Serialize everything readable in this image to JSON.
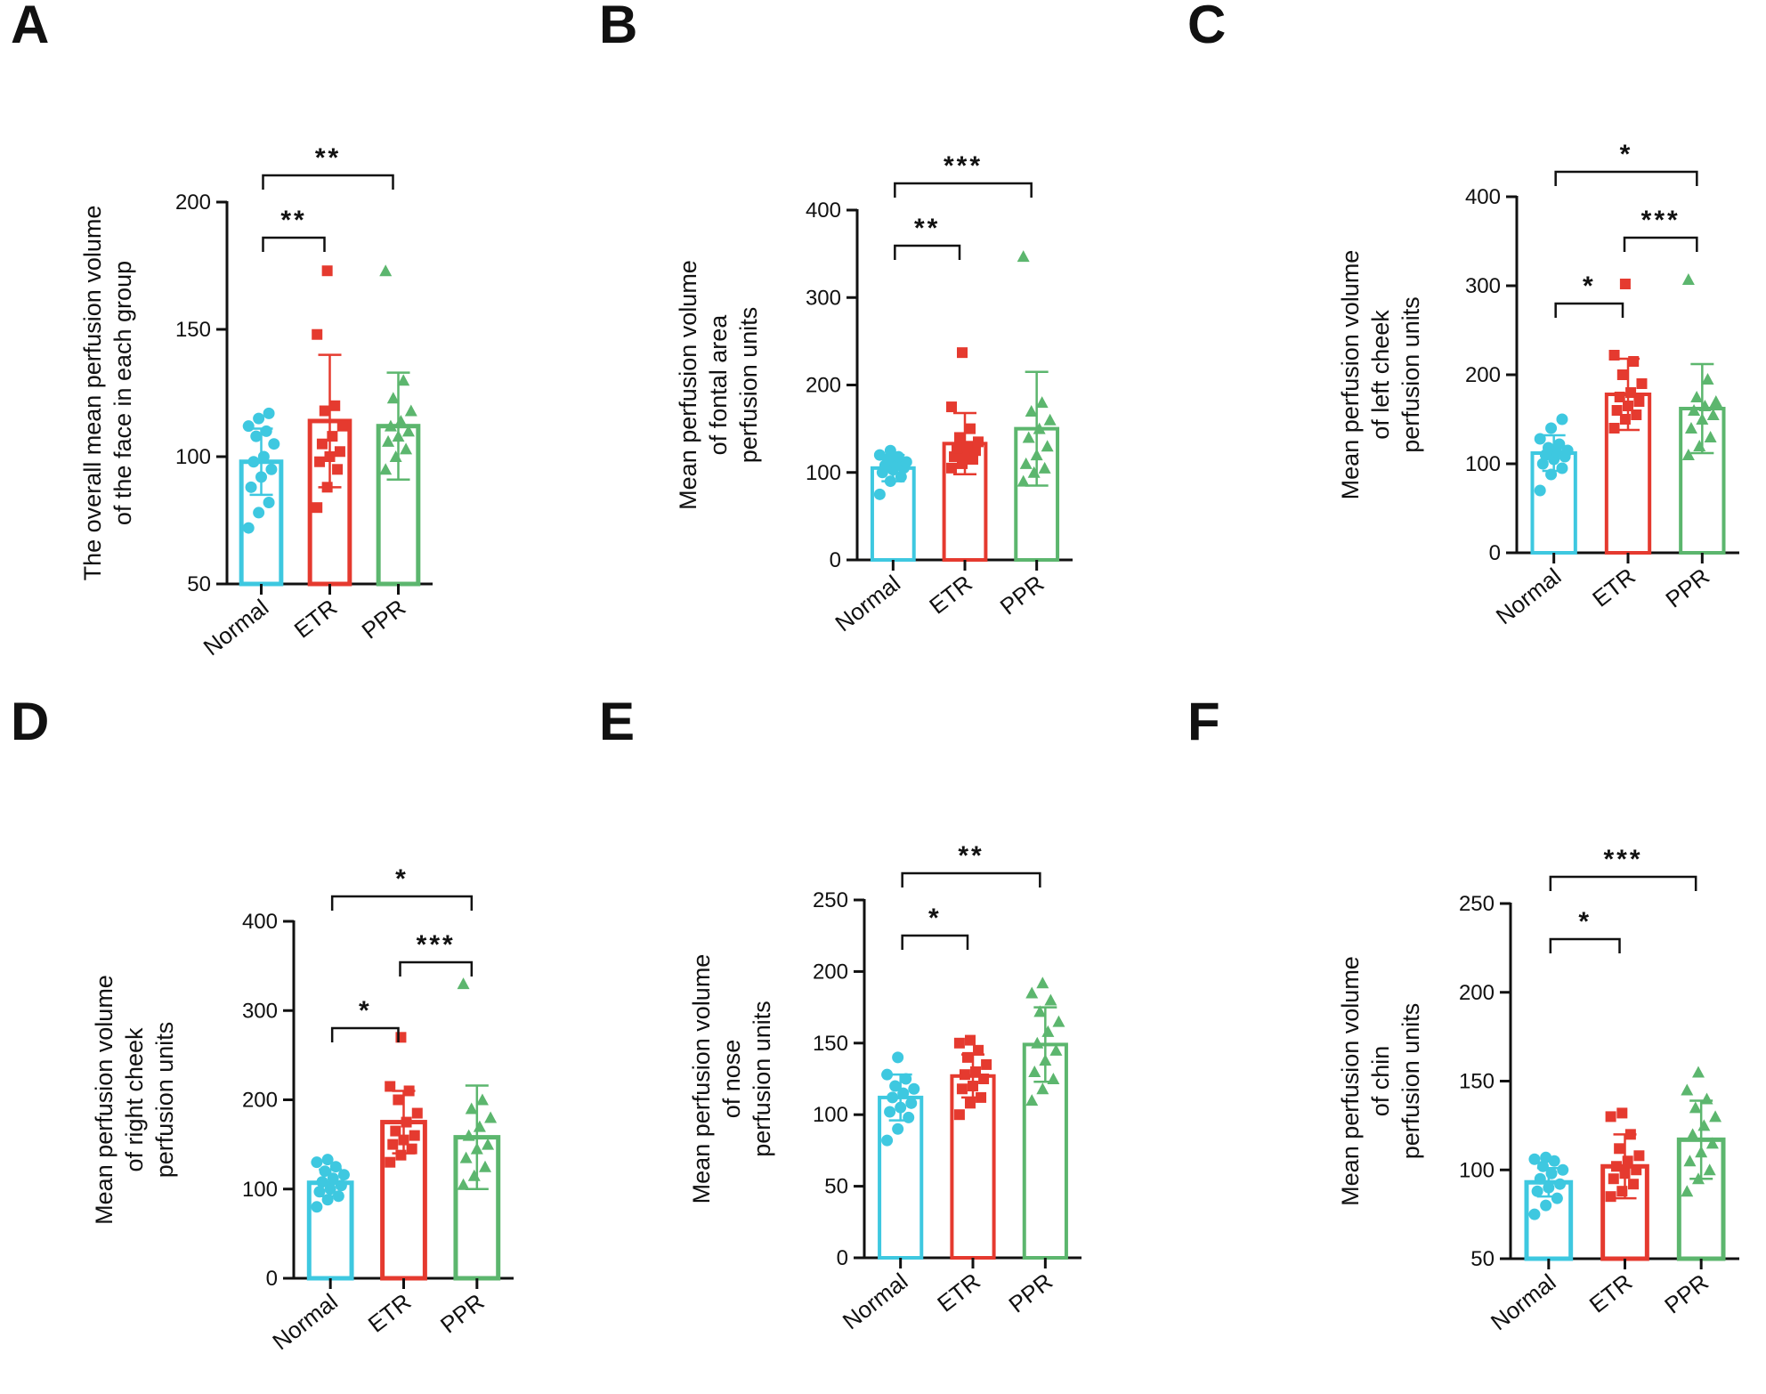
{
  "figure": {
    "colors": {
      "Normal": "#3ec8e0",
      "ETR": "#e53a2f",
      "PPR": "#5cb66e",
      "axis": "#111111"
    },
    "marker_shapes": {
      "Normal": "circle",
      "ETR": "square",
      "PPR": "triangle"
    }
  },
  "chart_data": [
    {
      "panel": "A",
      "type": "bar",
      "categories": [
        "Normal",
        "ETR",
        "PPR"
      ],
      "ylabel": [
        "The overall mean perfusion volume",
        "of the face in each group"
      ],
      "ylim": [
        50,
        200
      ],
      "yticks": [
        50,
        100,
        150,
        200
      ],
      "means": [
        98,
        114,
        112
      ],
      "sd": [
        13,
        26,
        21
      ],
      "points": [
        [
          72,
          78,
          82,
          88,
          92,
          95,
          98,
          100,
          105,
          108,
          110,
          112,
          115,
          117
        ],
        [
          80,
          88,
          95,
          98,
          100,
          102,
          105,
          108,
          112,
          118,
          120,
          148,
          173
        ],
        [
          95,
          100,
          103,
          106,
          108,
          110,
          112,
          114,
          118,
          123,
          130,
          173
        ]
      ],
      "comparisons": [
        {
          "from": 0,
          "to": 1,
          "label": "**",
          "level": 0
        },
        {
          "from": 0,
          "to": 2,
          "label": "**",
          "level": 1
        }
      ]
    },
    {
      "panel": "B",
      "type": "bar",
      "categories": [
        "Normal",
        "ETR",
        "PPR"
      ],
      "ylabel": [
        "Mean perfusion volume",
        "of fontal area",
        "perfusion units"
      ],
      "ylim": [
        0,
        400
      ],
      "yticks": [
        0,
        100,
        200,
        300,
        400
      ],
      "means": [
        105,
        133,
        150
      ],
      "sd": [
        15,
        35,
        65
      ],
      "points": [
        [
          75,
          90,
          95,
          100,
          103,
          105,
          108,
          110,
          112,
          115,
          118,
          120,
          125
        ],
        [
          105,
          110,
          115,
          118,
          120,
          125,
          128,
          130,
          135,
          140,
          150,
          175,
          237
        ],
        [
          90,
          100,
          105,
          110,
          120,
          130,
          140,
          150,
          160,
          170,
          180,
          347
        ]
      ],
      "comparisons": [
        {
          "from": 0,
          "to": 1,
          "label": "**",
          "level": 0
        },
        {
          "from": 0,
          "to": 2,
          "label": "***",
          "level": 1
        }
      ]
    },
    {
      "panel": "C",
      "type": "bar",
      "categories": [
        "Normal",
        "ETR",
        "PPR"
      ],
      "ylabel": [
        "Mean perfusion volume",
        "of left cheek",
        "perfusion units"
      ],
      "ylim": [
        0,
        400
      ],
      "yticks": [
        0,
        100,
        200,
        300,
        400
      ],
      "means": [
        112,
        178,
        162
      ],
      "sd": [
        20,
        40,
        50
      ],
      "points": [
        [
          70,
          88,
          95,
          100,
          105,
          108,
          110,
          113,
          115,
          118,
          122,
          128,
          140,
          150
        ],
        [
          140,
          150,
          155,
          160,
          165,
          170,
          175,
          180,
          190,
          200,
          215,
          222,
          302
        ],
        [
          110,
          120,
          130,
          140,
          150,
          155,
          160,
          165,
          170,
          175,
          195,
          307
        ]
      ],
      "comparisons": [
        {
          "from": 0,
          "to": 1,
          "label": "*",
          "level": 0
        },
        {
          "from": 1,
          "to": 2,
          "label": "***",
          "level": 1
        },
        {
          "from": 0,
          "to": 2,
          "label": "*",
          "level": 2
        }
      ]
    },
    {
      "panel": "D",
      "type": "bar",
      "categories": [
        "Normal",
        "ETR",
        "PPR"
      ],
      "ylabel": [
        "Mean perfusion volume",
        "of right cheek",
        "perfusion units"
      ],
      "ylim": [
        0,
        400
      ],
      "yticks": [
        0,
        100,
        200,
        300,
        400
      ],
      "means": [
        107,
        175,
        158
      ],
      "sd": [
        15,
        35,
        58
      ],
      "points": [
        [
          80,
          88,
          92,
          97,
          100,
          104,
          108,
          112,
          116,
          120,
          125,
          130,
          133
        ],
        [
          130,
          138,
          145,
          150,
          155,
          160,
          165,
          175,
          185,
          200,
          210,
          215,
          270
        ],
        [
          105,
          115,
          125,
          135,
          145,
          150,
          160,
          170,
          180,
          190,
          200,
          330
        ]
      ],
      "comparisons": [
        {
          "from": 0,
          "to": 1,
          "label": "*",
          "level": 0
        },
        {
          "from": 1,
          "to": 2,
          "label": "***",
          "level": 1
        },
        {
          "from": 0,
          "to": 2,
          "label": "*",
          "level": 2
        }
      ]
    },
    {
      "panel": "E",
      "type": "bar",
      "categories": [
        "Normal",
        "ETR",
        "PPR"
      ],
      "ylabel": [
        "Mean perfusion volume",
        "of nose",
        "perfusion units"
      ],
      "ylim": [
        0,
        250
      ],
      "yticks": [
        0,
        50,
        100,
        150,
        200,
        250
      ],
      "means": [
        112,
        127,
        149
      ],
      "sd": [
        16,
        15,
        26
      ],
      "points": [
        [
          82,
          90,
          98,
          102,
          105,
          108,
          112,
          115,
          118,
          120,
          125,
          128,
          140
        ],
        [
          100,
          108,
          112,
          118,
          120,
          125,
          128,
          130,
          135,
          140,
          145,
          150,
          152
        ],
        [
          110,
          118,
          125,
          130,
          138,
          145,
          150,
          158,
          165,
          172,
          180,
          185,
          192
        ]
      ],
      "comparisons": [
        {
          "from": 0,
          "to": 1,
          "label": "*",
          "level": 0
        },
        {
          "from": 0,
          "to": 2,
          "label": "**",
          "level": 1
        }
      ]
    },
    {
      "panel": "F",
      "type": "bar",
      "categories": [
        "Normal",
        "ETR",
        "PPR"
      ],
      "ylabel": [
        "Mean perfusion volume",
        "of chin",
        "perfusion units"
      ],
      "ylim": [
        50,
        250
      ],
      "yticks": [
        50,
        100,
        150,
        200,
        250
      ],
      "means": [
        93,
        102,
        117
      ],
      "sd": [
        8,
        18,
        22
      ],
      "points": [
        [
          75,
          80,
          84,
          88,
          90,
          92,
          95,
          98,
          100,
          102,
          105,
          106,
          107
        ],
        [
          85,
          88,
          92,
          95,
          98,
          100,
          102,
          105,
          108,
          112,
          120,
          130,
          132
        ],
        [
          88,
          95,
          100,
          105,
          110,
          115,
          120,
          125,
          130,
          135,
          140,
          145,
          155
        ]
      ],
      "comparisons": [
        {
          "from": 0,
          "to": 1,
          "label": "*",
          "level": 0
        },
        {
          "from": 0,
          "to": 2,
          "label": "***",
          "level": 1
        }
      ]
    }
  ]
}
